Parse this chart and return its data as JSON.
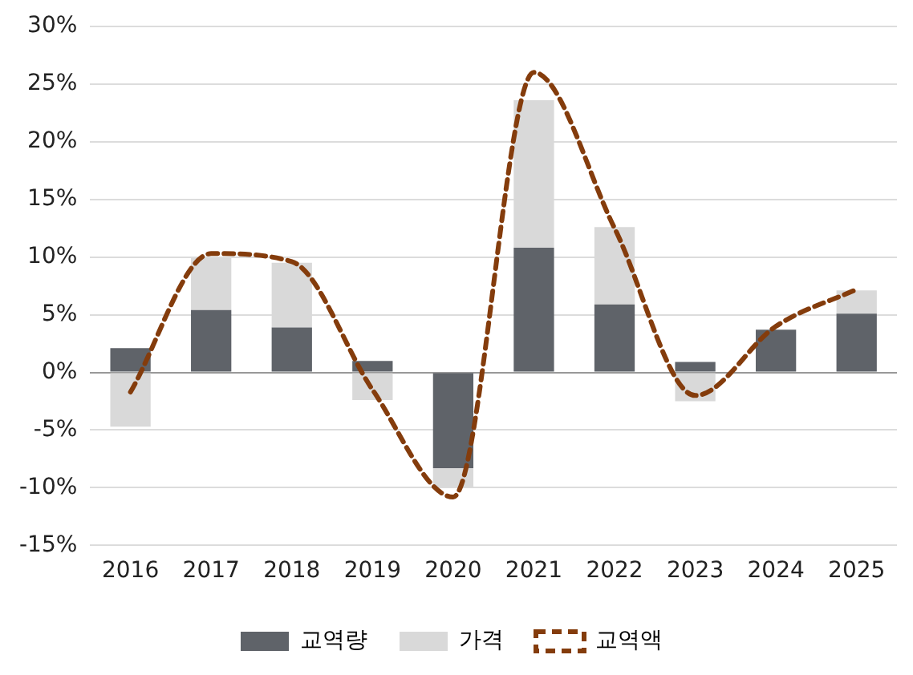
{
  "chart_data": {
    "type": "bar",
    "stacked": true,
    "categories": [
      "2016",
      "2017",
      "2018",
      "2019",
      "2020",
      "2021",
      "2022",
      "2023",
      "2024",
      "2025"
    ],
    "series": [
      {
        "name": "교역량",
        "color": "#5f6369",
        "values": [
          2.1,
          5.4,
          3.9,
          1.0,
          -8.3,
          10.8,
          5.9,
          0.9,
          3.7,
          5.1
        ]
      },
      {
        "name": "가격",
        "color": "#d9d9d9",
        "values": [
          -4.7,
          4.5,
          5.6,
          -2.4,
          -1.7,
          12.8,
          6.7,
          -2.5,
          0,
          2.0
        ]
      },
      {
        "name": "교역액",
        "type": "line",
        "color": "#843c0c",
        "line_style": "dashed",
        "marker": "none",
        "values": [
          -1.7,
          10.3,
          9.6,
          -1.5,
          -10.8,
          26.0,
          12.5,
          -2.0,
          4.0,
          7.2
        ]
      }
    ],
    "ylim": [
      -15,
      30
    ],
    "yticks": [
      {
        "value": -15,
        "label": "-15%"
      },
      {
        "value": -10,
        "label": "-10%"
      },
      {
        "value": -5,
        "label": "-5%"
      },
      {
        "value": 0,
        "label": "0%"
      },
      {
        "value": 5,
        "label": "5%"
      },
      {
        "value": 10,
        "label": "10%"
      },
      {
        "value": 15,
        "label": "15%"
      },
      {
        "value": 20,
        "label": "20%"
      },
      {
        "value": 25,
        "label": "25%"
      },
      {
        "value": 30,
        "label": "30%"
      }
    ],
    "grid": "y",
    "legend": "bottom"
  }
}
